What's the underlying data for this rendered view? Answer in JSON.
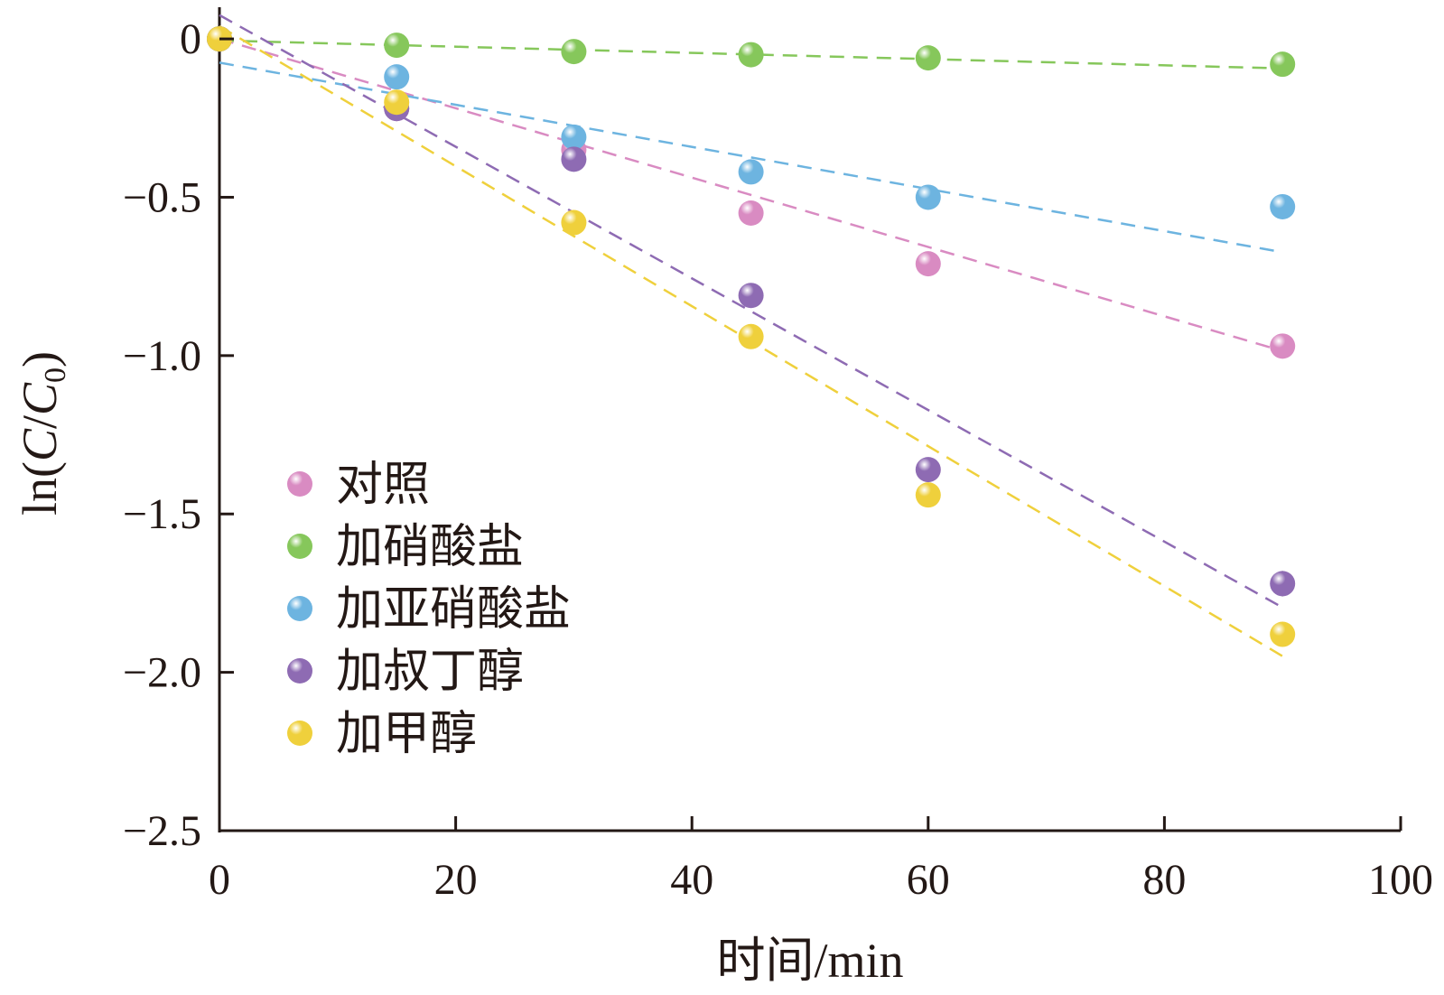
{
  "chart_data": {
    "type": "scatter",
    "xlabel": "时间/min",
    "ylabel": "ln(C/C0)",
    "ylabel_parts": {
      "prefix": "ln(",
      "c1": "C",
      "slash": "/",
      "c2": "C",
      "sub": "0",
      "suffix": ")"
    },
    "xlim": [
      0,
      100
    ],
    "ylim": [
      -2.5,
      0.1
    ],
    "x_ticks": [
      0,
      20,
      40,
      60,
      80,
      100
    ],
    "x_tick_labels": [
      "0",
      "20",
      "40",
      "60",
      "80",
      "100"
    ],
    "y_ticks": [
      0,
      -0.5,
      -1.0,
      -1.5,
      -2.0,
      -2.5
    ],
    "y_tick_labels": [
      "0",
      "−0.5",
      "−1.0",
      "−1.5",
      "−2.0",
      "−2.5"
    ],
    "grid": false,
    "legend_position": "bottom-left",
    "x": [
      0,
      15,
      30,
      45,
      60,
      90
    ],
    "series": [
      {
        "name": "对照",
        "color": "#d98bc2",
        "values": [
          0,
          -0.22,
          -0.35,
          -0.55,
          -0.71,
          -0.97
        ],
        "errors": [
          0,
          0.01,
          0.02,
          0.02,
          0.02,
          0.02
        ],
        "fit": {
          "slope": -0.01095,
          "intercept": 0.0,
          "x_range": [
            0,
            90
          ]
        }
      },
      {
        "name": "加硝酸盐",
        "color": "#86c75b",
        "values": [
          0,
          -0.02,
          -0.04,
          -0.05,
          -0.06,
          -0.08
        ],
        "errors": [
          0,
          0.01,
          0.01,
          0.01,
          0.01,
          0.01
        ],
        "fit": {
          "slope": -0.00098,
          "intercept": -0.005,
          "x_range": [
            0,
            90
          ]
        }
      },
      {
        "name": "加亚硝酸盐",
        "color": "#6db4e0",
        "values": [
          0,
          -0.12,
          -0.31,
          -0.42,
          -0.5,
          -0.53
        ],
        "errors": [
          0,
          0.01,
          0.03,
          0.03,
          0.02,
          0.02
        ],
        "fit": {
          "slope": -0.00665,
          "intercept": -0.075,
          "x_range": [
            0,
            90
          ]
        }
      },
      {
        "name": "加叔丁醇",
        "color": "#8e6bb3",
        "values": [
          0,
          -0.22,
          -0.38,
          -0.81,
          -1.36,
          -1.72
        ],
        "errors": [
          0,
          0.01,
          0.02,
          0.02,
          0.02,
          0.04
        ],
        "fit": {
          "slope": -0.02078,
          "intercept": 0.075,
          "x_range": [
            0,
            90
          ]
        }
      },
      {
        "name": "加甲醇",
        "color": "#efd03c",
        "values": [
          0,
          -0.2,
          -0.58,
          -0.94,
          -1.44,
          -1.88
        ],
        "errors": [
          0,
          0.01,
          0.01,
          0.01,
          0.01,
          0.01
        ],
        "fit": {
          "slope": -0.0221,
          "intercept": 0.04,
          "x_range": [
            0,
            90
          ]
        }
      }
    ]
  }
}
